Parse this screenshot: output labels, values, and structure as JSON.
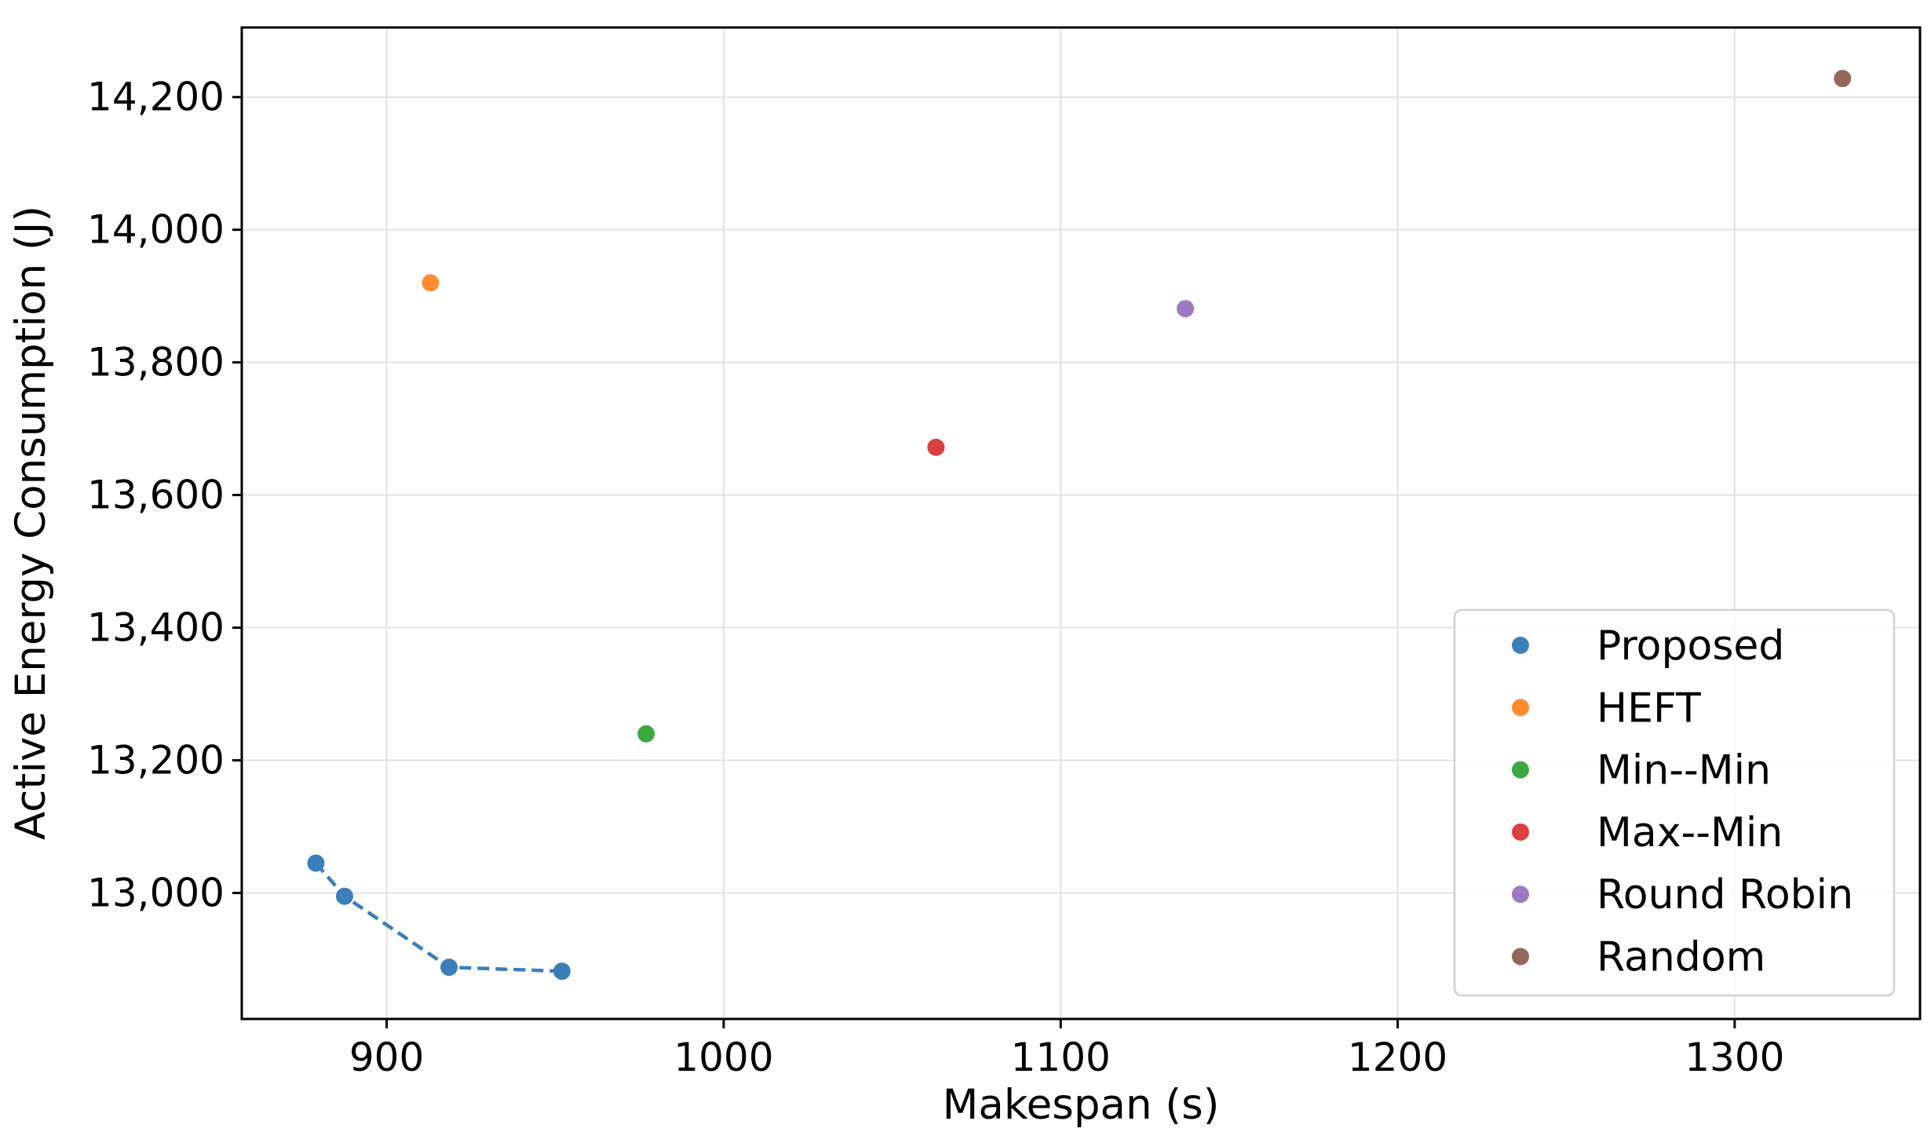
{
  "chart_data": {
    "type": "scatter",
    "title": "",
    "xlabel": "Makespan (s)",
    "ylabel": "Active Energy Consumption (J)",
    "xlim": [
      857,
      1355
    ],
    "ylim": [
      12810,
      14305
    ],
    "xticks": [
      900,
      1000,
      1100,
      1200,
      1300
    ],
    "yticks": [
      13000,
      13200,
      13400,
      13600,
      13800,
      14000,
      14200
    ],
    "xtick_labels": [
      "900",
      "1000",
      "1100",
      "1200",
      "1300"
    ],
    "ytick_labels": [
      "13,000",
      "13,200",
      "13,400",
      "13,600",
      "13,800",
      "14,000",
      "14,200"
    ],
    "grid": true,
    "legend_position": "bottom-right",
    "series": [
      {
        "name": "Proposed",
        "color": "#3b7fb9",
        "line": "dashed",
        "x": [
          879,
          887.5,
          918.5,
          952
        ],
        "y": [
          13045,
          12995,
          12888,
          12882
        ]
      },
      {
        "name": "HEFT",
        "color": "#ff8c2e",
        "line": "none",
        "x": [
          913
        ],
        "y": [
          13920
        ]
      },
      {
        "name": "Min--Min",
        "color": "#3ea83e",
        "line": "none",
        "x": [
          977
        ],
        "y": [
          13240
        ]
      },
      {
        "name": "Max--Min",
        "color": "#d9403f",
        "line": "none",
        "x": [
          1063
        ],
        "y": [
          13672
        ]
      },
      {
        "name": "Round Robin",
        "color": "#9d78c4",
        "line": "none",
        "x": [
          1137
        ],
        "y": [
          13881
        ]
      },
      {
        "name": "Random",
        "color": "#93685b",
        "line": "none",
        "x": [
          1332
        ],
        "y": [
          14228
        ]
      }
    ]
  }
}
